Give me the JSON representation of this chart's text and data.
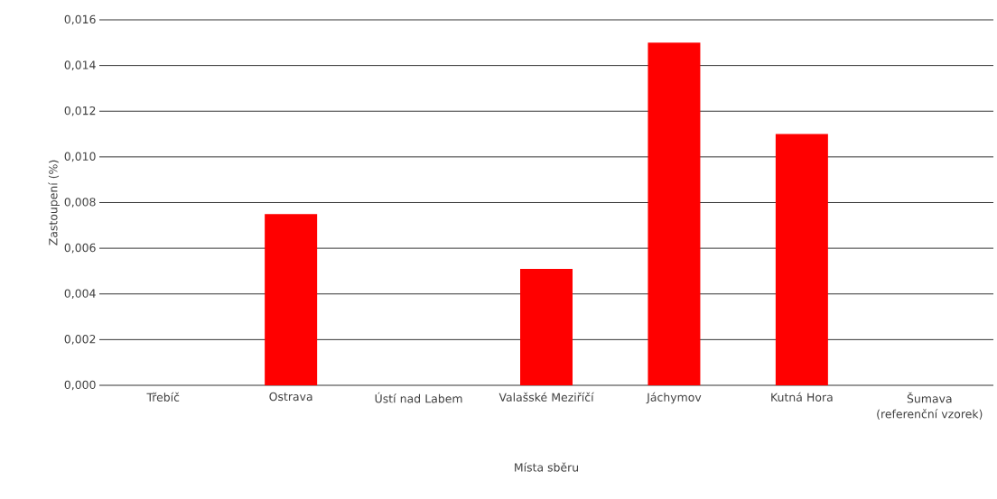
{
  "chart_data": {
    "type": "bar",
    "xlabel": "Místa sběru",
    "ylabel": "Zastoupení (%)",
    "categories": [
      "Třebíč",
      "Ostrava",
      "Ústí nad Labem",
      "Valašské Meziříčí",
      "Jáchymov",
      "Kutná Hora",
      "Šumava (referenční vzorek)"
    ],
    "values": [
      0,
      0.0075,
      0,
      0.0051,
      0.015,
      0.011,
      0
    ],
    "color": "#ff0000",
    "ylim": [
      0,
      0.016
    ],
    "yticks": [
      {
        "value": 0,
        "label": "0,000"
      },
      {
        "value": 0.002,
        "label": "0,002"
      },
      {
        "value": 0.004,
        "label": "0,004"
      },
      {
        "value": 0.006,
        "label": "0,006"
      },
      {
        "value": 0.008,
        "label": "0,008"
      },
      {
        "value": 0.01,
        "label": "0,010"
      },
      {
        "value": 0.012,
        "label": "0,012"
      },
      {
        "value": 0.014,
        "label": "0,014"
      },
      {
        "value": 0.016,
        "label": "0,016"
      }
    ],
    "grid": "y"
  }
}
